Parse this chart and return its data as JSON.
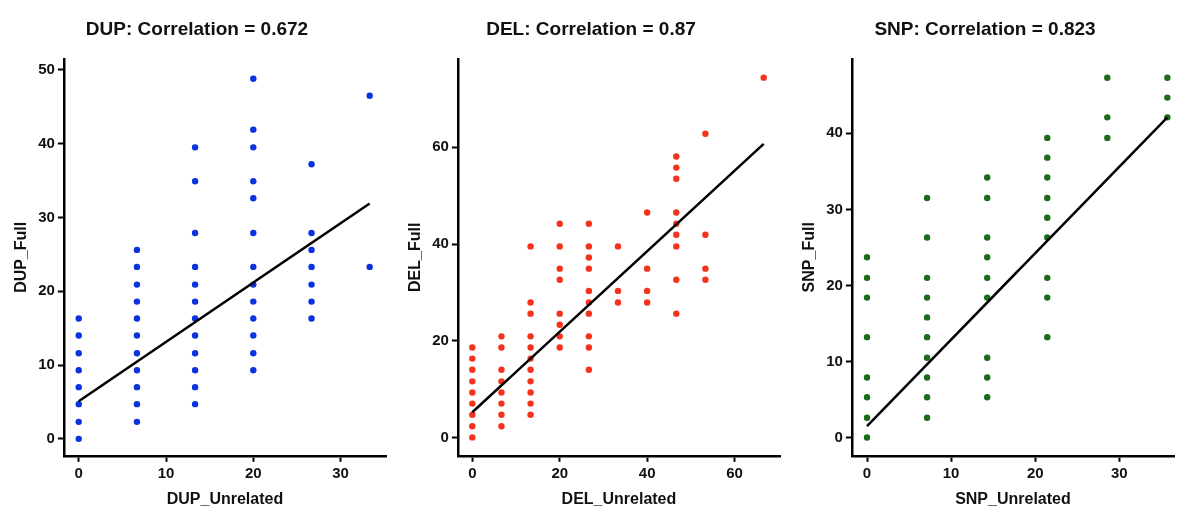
{
  "chart_data": [
    {
      "type": "scatter",
      "title": "DUP: Correlation = 0.672",
      "xlabel": "DUP_Unrelated",
      "ylabel": "DUP_Full",
      "xlim": [
        -1.7,
        35.2
      ],
      "ylim": [
        -2.3,
        51.5
      ],
      "xticks": [
        0,
        10,
        20,
        30
      ],
      "yticks": [
        0,
        10,
        20,
        30,
        40,
        50
      ],
      "series": [
        {
          "type": "scatter",
          "marker": "circle",
          "color": "#0a32e0",
          "x": [
            0,
            0,
            0,
            0,
            0,
            0,
            0,
            0,
            6.67,
            6.67,
            6.67,
            6.67,
            6.67,
            6.67,
            6.67,
            6.67,
            6.67,
            6.67,
            6.67,
            13.33,
            13.33,
            13.33,
            13.33,
            13.33,
            13.33,
            13.33,
            13.33,
            13.33,
            13.33,
            13.33,
            13.33,
            20,
            20,
            20,
            20,
            20,
            20,
            20,
            20,
            20,
            20,
            20,
            20,
            20,
            26.67,
            26.67,
            26.67,
            26.67,
            26.67,
            26.67,
            26.67,
            33.33,
            33.33
          ],
          "values": [
            0,
            2.3,
            4.7,
            7.0,
            9.3,
            11.6,
            14.0,
            16.3,
            2.3,
            4.7,
            7.0,
            9.3,
            11.6,
            14.0,
            16.3,
            18.6,
            20.9,
            23.3,
            25.6,
            4.7,
            7.0,
            9.3,
            11.6,
            14.0,
            16.3,
            18.6,
            20.9,
            23.3,
            27.9,
            34.9,
            39.5,
            9.3,
            11.6,
            14.0,
            16.3,
            18.6,
            20.9,
            23.3,
            27.9,
            32.6,
            34.9,
            39.5,
            41.9,
            48.8,
            16.3,
            18.6,
            20.9,
            23.3,
            25.6,
            27.9,
            37.2,
            23.3,
            46.5
          ]
        },
        {
          "type": "line",
          "color": "#000000",
          "x": [
            0,
            33.33
          ],
          "values": [
            5.1,
            31.9
          ]
        }
      ]
    },
    {
      "type": "scatter",
      "title": "DEL: Correlation = 0.87",
      "xlabel": "DEL_Unrelated",
      "ylabel": "DEL_Full",
      "xlim": [
        -3.3,
        70.4
      ],
      "ylim": [
        -3.8,
        78.3
      ],
      "xticks": [
        0,
        20,
        40,
        60
      ],
      "yticks": [
        0,
        20,
        40,
        60
      ],
      "series": [
        {
          "type": "scatter",
          "marker": "circle",
          "color": "#f5321e",
          "x": [
            0,
            0,
            0,
            0,
            0,
            0,
            0,
            0,
            0,
            6.67,
            6.67,
            6.67,
            6.67,
            6.67,
            6.67,
            6.67,
            6.67,
            13.33,
            13.33,
            13.33,
            13.33,
            13.33,
            13.33,
            13.33,
            13.33,
            13.33,
            13.33,
            13.33,
            20,
            20,
            20,
            20,
            20,
            20,
            20,
            20,
            26.67,
            26.67,
            26.67,
            26.67,
            26.67,
            26.67,
            26.67,
            26.67,
            26.67,
            26.67,
            33.33,
            33.33,
            33.33,
            40,
            40,
            40,
            40,
            46.67,
            46.67,
            46.67,
            46.67,
            46.67,
            46.67,
            46.67,
            46.67,
            46.67,
            53.33,
            53.33,
            53.33,
            53.33,
            66.67
          ],
          "values": [
            0,
            2.3,
            4.7,
            7.0,
            9.3,
            11.6,
            14.0,
            16.3,
            18.6,
            2.3,
            4.7,
            7.0,
            9.3,
            11.6,
            14.0,
            18.6,
            20.9,
            4.7,
            7.0,
            9.3,
            11.6,
            14.0,
            16.3,
            18.6,
            20.9,
            25.6,
            27.9,
            39.5,
            18.6,
            20.9,
            23.3,
            25.6,
            32.6,
            34.9,
            39.5,
            44.2,
            14.0,
            18.6,
            20.9,
            25.6,
            27.9,
            30.3,
            34.9,
            37.2,
            39.5,
            44.2,
            27.9,
            30.3,
            39.5,
            27.9,
            30.3,
            34.9,
            46.5,
            25.6,
            32.6,
            39.5,
            41.9,
            44.2,
            46.5,
            53.5,
            55.8,
            58.1,
            32.6,
            34.9,
            41.9,
            62.8,
            74.4
          ]
        },
        {
          "type": "line",
          "color": "#000000",
          "x": [
            0,
            66.67
          ],
          "values": [
            5.2,
            60.7
          ]
        }
      ]
    },
    {
      "type": "scatter",
      "title": "SNP: Correlation = 0.823",
      "xlabel": "SNP_Unrelated",
      "ylabel": "SNP_Full",
      "xlim": [
        -1.8,
        36.5
      ],
      "ylim": [
        -2.4,
        49.8
      ],
      "xticks": [
        0,
        10,
        20,
        30
      ],
      "yticks": [
        0,
        10,
        20,
        30,
        40
      ],
      "series": [
        {
          "type": "scatter",
          "marker": "circle",
          "color": "#1a6b1a",
          "x": [
            0,
            0,
            0,
            0,
            0,
            0,
            0,
            0,
            7.14,
            7.14,
            7.14,
            7.14,
            7.14,
            7.14,
            7.14,
            7.14,
            7.14,
            7.14,
            14.29,
            14.29,
            14.29,
            14.29,
            14.29,
            14.29,
            14.29,
            14.29,
            14.29,
            21.43,
            21.43,
            21.43,
            21.43,
            21.43,
            21.43,
            21.43,
            21.43,
            21.43,
            28.57,
            28.57,
            28.57,
            35.71,
            35.71,
            35.71
          ],
          "values": [
            0,
            2.6,
            5.3,
            7.9,
            13.2,
            18.4,
            21.0,
            23.7,
            2.6,
            5.3,
            7.9,
            10.5,
            13.2,
            15.8,
            18.4,
            21.0,
            26.3,
            31.5,
            5.3,
            7.9,
            10.5,
            18.4,
            21.0,
            23.7,
            26.3,
            31.5,
            34.2,
            13.2,
            18.4,
            21.0,
            26.3,
            28.9,
            31.5,
            34.2,
            36.8,
            39.4,
            39.4,
            42.1,
            47.3,
            42.1,
            44.7,
            47.3
          ]
        },
        {
          "type": "line",
          "color": "#000000",
          "x": [
            0,
            35.71
          ],
          "values": [
            1.5,
            42.1
          ]
        }
      ]
    }
  ]
}
